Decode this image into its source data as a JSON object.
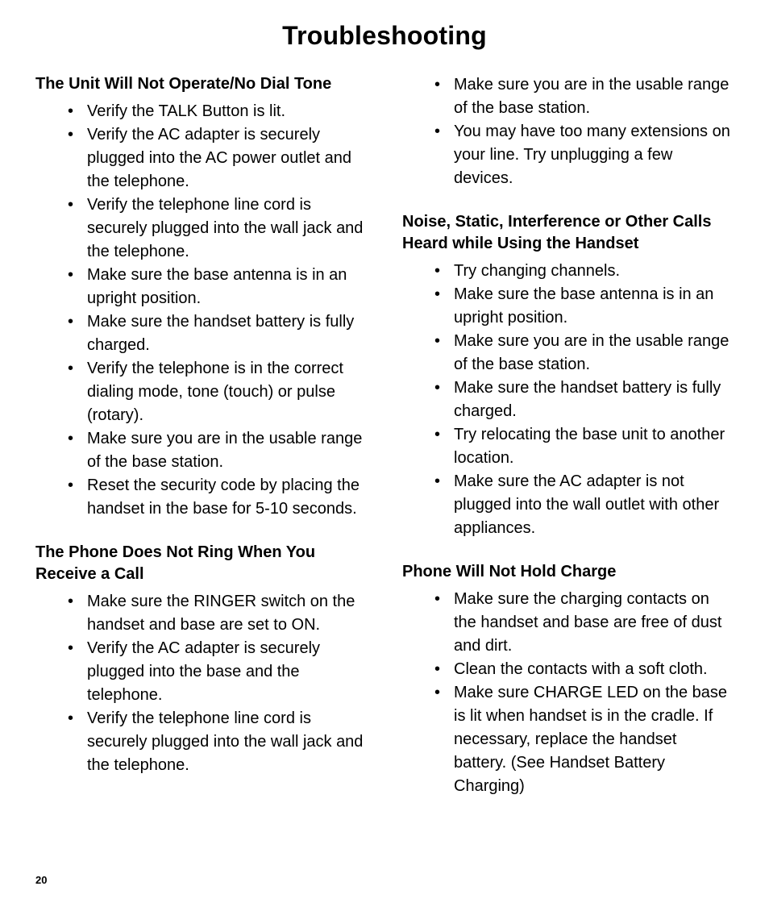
{
  "page": {
    "title": "Troubleshooting",
    "page_number": "20",
    "background_color": "#ffffff",
    "text_color": "#000000",
    "title_fontsize": 32,
    "heading_fontsize": 20,
    "body_fontsize": 20,
    "page_number_fontsize": 13,
    "font_family": "Futura / Century Gothic style sans-serif"
  },
  "left": {
    "sections": [
      {
        "heading": "The Unit Will Not Operate/No Dial Tone",
        "items": [
          "Verify the TALK Button is lit.",
          "Verify the AC adapter is securely plugged into the AC power outlet and the telephone.",
          "Verify the telephone line cord is securely plugged into the wall jack and the telephone.",
          "Make sure the base antenna is in an upright position.",
          "Make sure the handset battery is fully charged.",
          "Verify the telephone is in the correct dialing mode, tone (touch) or pulse (rotary).",
          "Make sure you are in the usable range of the base station.",
          "Reset the security code by placing the handset in the base for 5-10 seconds."
        ]
      },
      {
        "heading": "The Phone Does Not Ring When You Receive a Call",
        "items": [
          "Make sure the RINGER switch on the handset and base are set to ON.",
          "Verify the AC adapter is securely plugged into the base and the telephone.",
          "Verify the telephone line cord is securely plugged into the wall jack and the telephone."
        ]
      }
    ]
  },
  "right": {
    "sections": [
      {
        "heading": "",
        "items": [
          "Make sure you are in the usable range of the base station.",
          "You may have too many extensions on your line. Try unplugging a few devices."
        ]
      },
      {
        "heading": "Noise, Static, Interference or Other Calls Heard while Using the Handset",
        "items": [
          "Try changing channels.",
          "Make sure the base antenna is in an upright position.",
          "Make sure you are in the usable range of the base station.",
          "Make sure the handset battery is fully charged.",
          "Try relocating the base unit to another location.",
          "Make sure the AC adapter is not plugged into the wall outlet with other appliances."
        ]
      },
      {
        "heading": "Phone Will Not Hold Charge",
        "items": [
          "Make sure the charging contacts on the handset and base are free of dust and dirt.",
          "Clean the contacts with a soft cloth.",
          "Make sure CHARGE LED on the base is lit when handset is in the cradle. If necessary, replace the handset battery. (See Handset Battery Charging)"
        ]
      }
    ]
  }
}
